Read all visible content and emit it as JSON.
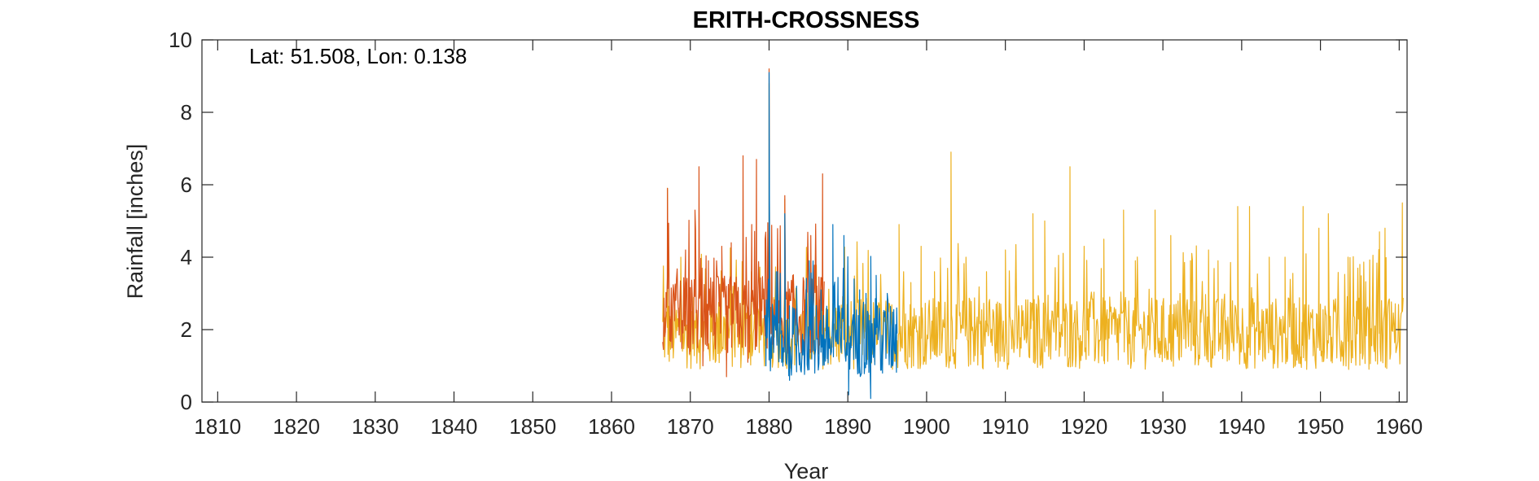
{
  "chart_data": {
    "type": "line",
    "title": "ERITH-CROSSNESS",
    "annotation": "Lat: 51.508, Lon: 0.138",
    "xlabel": "Year",
    "ylabel": "Rainfall [inches]",
    "xlim": [
      1808,
      1961
    ],
    "ylim": [
      0,
      10
    ],
    "xticks": [
      1810,
      1820,
      1830,
      1840,
      1850,
      1860,
      1870,
      1880,
      1890,
      1900,
      1910,
      1920,
      1930,
      1940,
      1950,
      1960
    ],
    "yticks": [
      0,
      2,
      4,
      6,
      8,
      10
    ],
    "grid": false,
    "series": [
      {
        "color": "#D95319",
        "x_start": 1866.5,
        "x_end": 1887.0,
        "sample_points": [
          [
            1866.6,
            1.9
          ],
          [
            1866.9,
            2.4
          ],
          [
            1867.1,
            5.9
          ],
          [
            1867.4,
            1.7
          ],
          [
            1868.5,
            2.6
          ],
          [
            1869.4,
            4.2
          ],
          [
            1870.0,
            1.4
          ],
          [
            1870.6,
            5.3
          ],
          [
            1871.1,
            6.5
          ],
          [
            1871.6,
            1.0
          ],
          [
            1872.3,
            3.9
          ],
          [
            1873.1,
            2.2
          ],
          [
            1874.0,
            4.3
          ],
          [
            1874.6,
            0.7
          ],
          [
            1875.2,
            4.4
          ],
          [
            1876.0,
            1.8
          ],
          [
            1876.7,
            6.8
          ],
          [
            1877.3,
            1.1
          ],
          [
            1877.8,
            4.9
          ],
          [
            1878.4,
            6.7
          ],
          [
            1879.0,
            2.5
          ],
          [
            1879.5,
            4.5
          ],
          [
            1880.0,
            9.2
          ],
          [
            1880.6,
            1.9
          ],
          [
            1881.3,
            2.8
          ],
          [
            1882.0,
            5.7
          ],
          [
            1883.0,
            1.8
          ],
          [
            1884.2,
            2.4
          ],
          [
            1885.3,
            4.6
          ],
          [
            1886.0,
            2.1
          ],
          [
            1886.8,
            6.3
          ]
        ],
        "noise_amplitude": 1.1,
        "baseline": 2.3
      },
      {
        "color": "#0072BD",
        "x_start": 1879.5,
        "x_end": 1896.3,
        "sample_points": [
          [
            1879.6,
            1.0
          ],
          [
            1880.0,
            9.1
          ],
          [
            1880.3,
            1.8
          ],
          [
            1880.9,
            3.6
          ],
          [
            1881.6,
            1.1
          ],
          [
            1882.0,
            5.2
          ],
          [
            1882.6,
            0.6
          ],
          [
            1883.5,
            3.2
          ],
          [
            1884.3,
            1.3
          ],
          [
            1885.1,
            3.9
          ],
          [
            1885.8,
            0.8
          ],
          [
            1886.6,
            3.1
          ],
          [
            1887.4,
            1.2
          ],
          [
            1888.1,
            4.9
          ],
          [
            1888.8,
            1.6
          ],
          [
            1889.5,
            4.6
          ],
          [
            1890.1,
            0.2
          ],
          [
            1890.8,
            3.4
          ],
          [
            1891.5,
            1.0
          ],
          [
            1892.3,
            3.0
          ],
          [
            1892.9,
            0.1
          ],
          [
            1893.6,
            3.5
          ],
          [
            1894.4,
            0.8
          ],
          [
            1895.0,
            3.0
          ],
          [
            1895.7,
            1.0
          ],
          [
            1896.2,
            2.6
          ]
        ],
        "noise_amplitude": 1.0,
        "baseline": 1.6
      },
      {
        "color": "#EDB120",
        "x_start": 1866.5,
        "x_end": 1960.5,
        "sample_points": [
          [
            1867.1,
            5.9
          ],
          [
            1868.8,
            4.0
          ],
          [
            1880.0,
            8.8
          ],
          [
            1882.0,
            5.6
          ],
          [
            1896.5,
            4.9
          ],
          [
            1898.0,
            3.3
          ],
          [
            1899.3,
            4.3
          ],
          [
            1901.0,
            3.6
          ],
          [
            1903.1,
            6.9
          ],
          [
            1905.0,
            4.0
          ],
          [
            1907.6,
            3.6
          ],
          [
            1910.0,
            4.2
          ],
          [
            1913.5,
            5.2
          ],
          [
            1915.0,
            5.0
          ],
          [
            1918.2,
            6.5
          ],
          [
            1920.0,
            4.3
          ],
          [
            1922.5,
            4.5
          ],
          [
            1925.0,
            5.3
          ],
          [
            1926.5,
            3.9
          ],
          [
            1929.0,
            5.3
          ],
          [
            1931.0,
            4.6
          ],
          [
            1933.5,
            3.9
          ],
          [
            1935.8,
            4.2
          ],
          [
            1937.0,
            3.9
          ],
          [
            1939.5,
            5.4
          ],
          [
            1941.0,
            5.4
          ],
          [
            1943.5,
            4.0
          ],
          [
            1945.5,
            4.0
          ],
          [
            1947.8,
            5.4
          ],
          [
            1949.8,
            4.8
          ],
          [
            1951.0,
            5.2
          ],
          [
            1953.5,
            4.0
          ],
          [
            1955.0,
            3.8
          ],
          [
            1957.5,
            4.7
          ],
          [
            1958.2,
            4.8
          ],
          [
            1960.4,
            5.5
          ]
        ],
        "noise_amplitude": 1.0,
        "baseline": 1.8
      }
    ]
  }
}
